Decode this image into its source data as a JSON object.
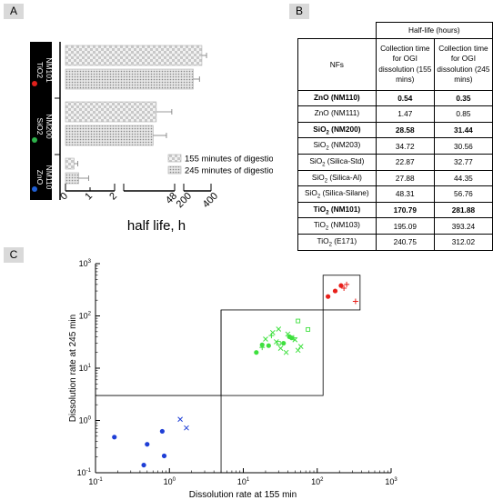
{
  "panels": {
    "a": "A",
    "b": "B",
    "c": "C"
  },
  "panel_a": {
    "groups": [
      {
        "line1": "NM101",
        "line2": "TiO2",
        "dot_color": "#e0201b"
      },
      {
        "line1": "NM200",
        "line2": "SiO2",
        "dot_color": "#2db34a"
      },
      {
        "line1": "NM110",
        "line2": "ZnO",
        "dot_color": "#1f5fd6"
      }
    ],
    "legend": [
      "155 minutes of digestion",
      "245 minutes of digestion"
    ],
    "xlabel": "half life, h",
    "ticks": [
      "0",
      "1",
      "2",
      "48",
      "200",
      "400"
    ]
  },
  "table": {
    "header_group": "Half-life (hours)",
    "col0": "NFs",
    "col1": "Collection time for OGI dissolution (155 mins)",
    "col2": "Collection time for OGI dissolution (245 mins)",
    "rows": [
      {
        "pre": "ZnO",
        "sub": "",
        "post": " (NM110)",
        "v155": "0.54",
        "v245": "0.35",
        "bold": true
      },
      {
        "pre": "ZnO",
        "sub": "",
        "post": " (NM111)",
        "v155": "1.47",
        "v245": "0.85",
        "bold": false
      },
      {
        "pre": "SiO",
        "sub": "2",
        "post": " (NM200)",
        "v155": "28.58",
        "v245": "31.44",
        "bold": true
      },
      {
        "pre": "SiO",
        "sub": "2",
        "post": " (NM203)",
        "v155": "34.72",
        "v245": "30.56",
        "bold": false
      },
      {
        "pre": "SiO",
        "sub": "2",
        "post": " (Silica-Std)",
        "v155": "22.87",
        "v245": "32.77",
        "bold": false
      },
      {
        "pre": "SiO",
        "sub": "2",
        "post": " (Silica-Al)",
        "v155": "27.88",
        "v245": "44.35",
        "bold": false
      },
      {
        "pre": "SiO",
        "sub": "2",
        "post": " (Silica-Silane)",
        "v155": "48.31",
        "v245": "56.76",
        "bold": false
      },
      {
        "pre": "TiO",
        "sub": "2",
        "post": " (NM101)",
        "v155": "170.79",
        "v245": "281.88",
        "bold": true
      },
      {
        "pre": "TiO",
        "sub": "2",
        "post": " (NM103)",
        "v155": "195.09",
        "v245": "393.24",
        "bold": false
      },
      {
        "pre": "TiO",
        "sub": "2",
        "post": " (E171)",
        "v155": "240.75",
        "v245": "312.02",
        "bold": false
      }
    ]
  },
  "chart_data": [
    {
      "type": "bar",
      "orientation": "horizontal",
      "categories": [
        "TiO2 NM101",
        "SiO2 NM200",
        "ZnO NM110"
      ],
      "series": [
        {
          "name": "155 minutes of digestion",
          "values": [
            170.79,
            28.58,
            0.54
          ],
          "error": [
            80,
            12,
            0.4
          ]
        },
        {
          "name": "245 minutes of digestion",
          "values": [
            281.88,
            31.44,
            0.35
          ],
          "error": [
            60,
            14,
            0.15
          ]
        }
      ],
      "xlabel": "half life, h",
      "x_segments": [
        [
          0,
          2
        ],
        [
          2,
          48
        ],
        [
          48,
          400
        ]
      ],
      "x_ticks": [
        "0",
        "1",
        "2",
        "48",
        "200",
        "400"
      ]
    },
    {
      "type": "scatter",
      "xlabel": "Dissolution rate at 155 min",
      "ylabel": "Dissolution rate at 245 min",
      "xscale": "log",
      "yscale": "log",
      "xlim": [
        0.1,
        1000
      ],
      "ylim": [
        0.1,
        1000
      ],
      "x_ticks": [
        "10^-1",
        "10^0",
        "10^1",
        "10^2",
        "10^3"
      ],
      "y_ticks": [
        "10^-1",
        "10^0",
        "10^1",
        "10^2",
        "10^3"
      ],
      "regions": [
        {
          "x": [
            5,
            120
          ],
          "y": [
            3,
            130
          ]
        },
        {
          "x": [
            120,
            380
          ],
          "y": [
            130,
            600
          ]
        }
      ],
      "reference_line_y": 3,
      "series": [
        {
          "color": "#1f3fd6",
          "points": [
            [
              0.18,
              0.48,
              "dot"
            ],
            [
              0.45,
              0.14,
              "dot"
            ],
            [
              0.5,
              0.35,
              "dot"
            ],
            [
              0.8,
              0.62,
              "dot"
            ],
            [
              0.85,
              0.21,
              "dot"
            ],
            [
              1.4,
              1.05,
              "x"
            ],
            [
              1.7,
              0.72,
              "x"
            ]
          ]
        },
        {
          "color": "#3ee03e",
          "points": [
            [
              15,
              20,
              "dot"
            ],
            [
              18,
              28,
              "dot"
            ],
            [
              22,
              27,
              "dot"
            ],
            [
              35,
              30,
              "dot"
            ],
            [
              42,
              40,
              "dot"
            ],
            [
              45,
              38,
              "dot"
            ],
            [
              28,
              32,
              "x"
            ],
            [
              32,
              24,
              "x"
            ],
            [
              38,
              20,
              "x"
            ],
            [
              55,
              22,
              "x"
            ],
            [
              60,
              26,
              "x"
            ],
            [
              20,
              36,
              "x"
            ],
            [
              25,
              48,
              "x"
            ],
            [
              30,
              56,
              "x"
            ],
            [
              40,
              45,
              "x"
            ],
            [
              50,
              35,
              "x"
            ],
            [
              18,
              25,
              "plus"
            ],
            [
              24,
              42,
              "plus"
            ],
            [
              48,
              38,
              "plus"
            ],
            [
              55,
              80,
              "square"
            ],
            [
              75,
              55,
              "square"
            ],
            [
              30,
              30,
              "square"
            ]
          ]
        },
        {
          "color": "#e8201b",
          "points": [
            [
              140,
              235,
              "dot"
            ],
            [
              175,
              300,
              "dot"
            ],
            [
              210,
              380,
              "dot"
            ],
            [
              230,
              340,
              "plus"
            ],
            [
              250,
              400,
              "plus"
            ],
            [
              330,
              190,
              "plus"
            ]
          ]
        }
      ]
    }
  ]
}
